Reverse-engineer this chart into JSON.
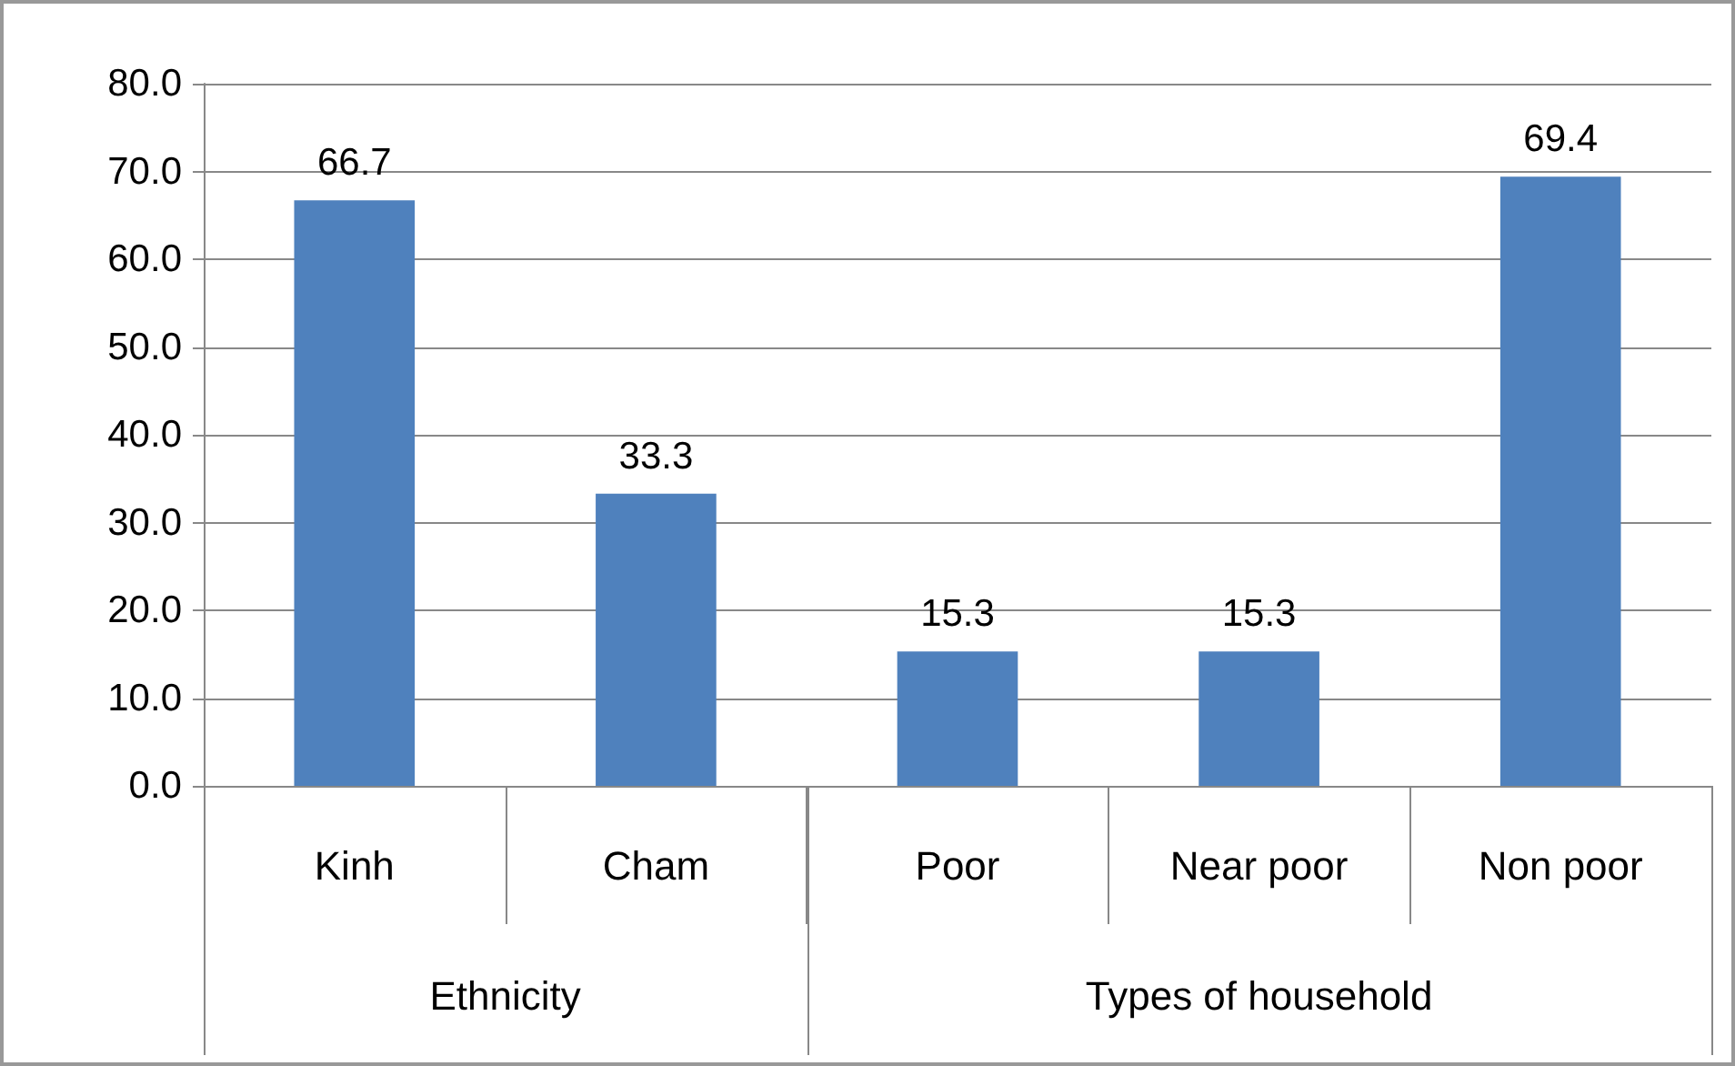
{
  "chart_data": {
    "type": "bar",
    "categories": [
      "Kinh",
      "Cham",
      "Poor",
      "Near poor",
      "Non poor"
    ],
    "values": [
      66.7,
      33.3,
      15.3,
      15.3,
      69.4
    ],
    "color": "#4f81bd",
    "ylim": [
      0,
      80
    ],
    "yticks": [
      {
        "value": 0,
        "label": "0.0"
      },
      {
        "value": 10,
        "label": "10.0"
      },
      {
        "value": 20,
        "label": "20.0"
      },
      {
        "value": 30,
        "label": "30.0"
      },
      {
        "value": 40,
        "label": "40.0"
      },
      {
        "value": 50,
        "label": "50.0"
      },
      {
        "value": 60,
        "label": "60.0"
      },
      {
        "value": 70,
        "label": "70.0"
      },
      {
        "value": 80,
        "label": "80.0"
      }
    ],
    "grid": "y",
    "data_labels": true,
    "annotations": [
      "Ethnicity",
      "Types of household"
    ]
  }
}
